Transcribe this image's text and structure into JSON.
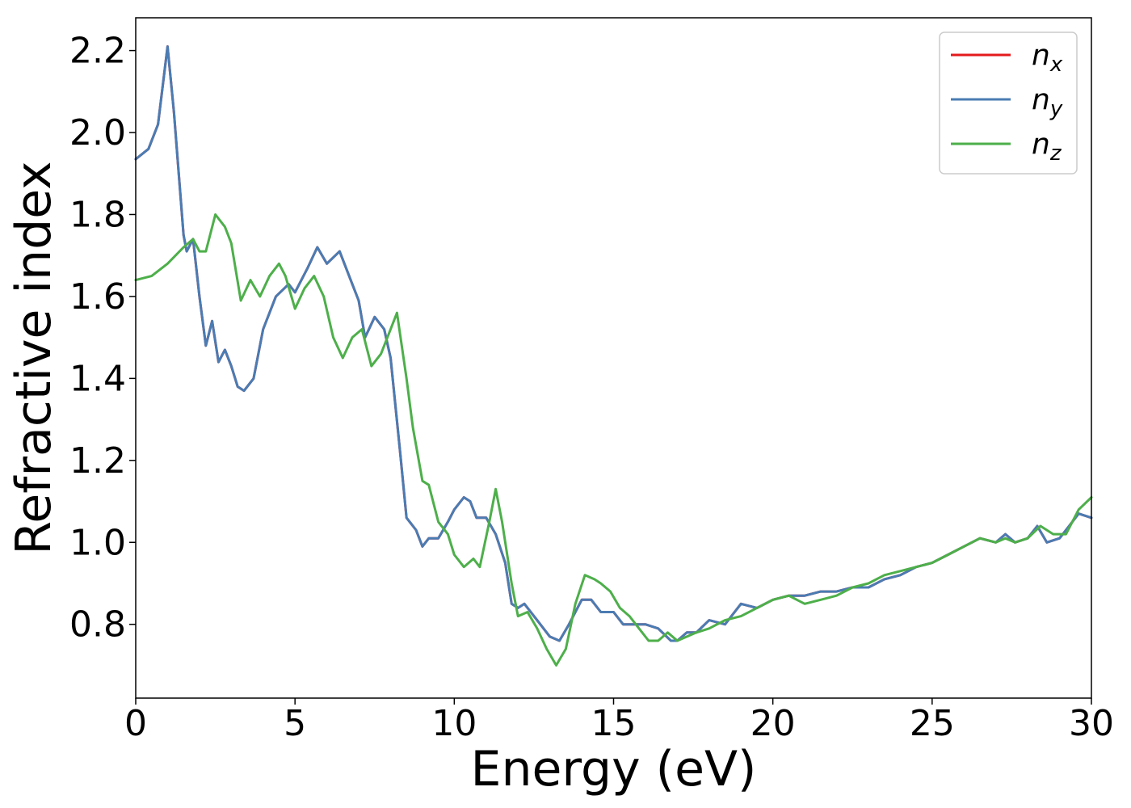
{
  "chart_data": {
    "type": "line",
    "title": "",
    "xlabel": "Energy (eV)",
    "ylabel": "Refractive index",
    "xlim": [
      0,
      30
    ],
    "ylim": [
      0.62,
      2.28
    ],
    "xticks": [
      0,
      5,
      10,
      15,
      20,
      25,
      30
    ],
    "xtick_labels": [
      "0",
      "5",
      "10",
      "15",
      "20",
      "25",
      "30"
    ],
    "yticks": [
      0.8,
      1.0,
      1.2,
      1.4,
      1.6,
      1.8,
      2.0,
      2.2
    ],
    "ytick_labels": [
      "0.8",
      "1.0",
      "1.2",
      "1.4",
      "1.6",
      "1.8",
      "2.0",
      "2.2"
    ],
    "grid": false,
    "legend_placement": "top-right",
    "series": [
      {
        "name": "n_x",
        "label_base": "n",
        "label_sub": "x",
        "color": "#e41a1c",
        "x": [
          0,
          0.4,
          0.7,
          1.0,
          1.2,
          1.5,
          1.6,
          1.8,
          2.0,
          2.2,
          2.4,
          2.6,
          2.8,
          3.0,
          3.2,
          3.4,
          3.7,
          4.0,
          4.4,
          4.8,
          5.0,
          5.4,
          5.7,
          6.0,
          6.4,
          6.8,
          7.0,
          7.2,
          7.5,
          7.8,
          8.0,
          8.3,
          8.5,
          8.8,
          9.0,
          9.2,
          9.5,
          9.8,
          10.0,
          10.3,
          10.5,
          10.7,
          11.0,
          11.3,
          11.6,
          11.8,
          12.0,
          12.2,
          12.6,
          13.0,
          13.3,
          13.6,
          14.0,
          14.3,
          14.6,
          15.0,
          15.3,
          15.6,
          16.0,
          16.4,
          16.8,
          17.0,
          17.3,
          17.6,
          18.0,
          18.5,
          19.0,
          19.5,
          20.0,
          20.5,
          21.0,
          21.5,
          22.0,
          22.5,
          23.0,
          23.5,
          24.0,
          24.5,
          25.0,
          25.5,
          26.0,
          26.5,
          27.0,
          27.3,
          27.6,
          28.0,
          28.3,
          28.6,
          29.0,
          29.3,
          29.6,
          30.0
        ],
        "y": [
          1.935,
          1.96,
          2.02,
          2.21,
          2.05,
          1.75,
          1.71,
          1.74,
          1.6,
          1.48,
          1.54,
          1.44,
          1.47,
          1.43,
          1.38,
          1.37,
          1.4,
          1.52,
          1.6,
          1.63,
          1.61,
          1.67,
          1.72,
          1.68,
          1.71,
          1.63,
          1.59,
          1.5,
          1.55,
          1.52,
          1.45,
          1.22,
          1.06,
          1.03,
          0.99,
          1.01,
          1.01,
          1.05,
          1.08,
          1.11,
          1.1,
          1.06,
          1.06,
          1.02,
          0.95,
          0.85,
          0.84,
          0.85,
          0.81,
          0.77,
          0.76,
          0.8,
          0.86,
          0.86,
          0.83,
          0.83,
          0.8,
          0.8,
          0.8,
          0.79,
          0.76,
          0.76,
          0.78,
          0.78,
          0.81,
          0.8,
          0.85,
          0.84,
          0.86,
          0.87,
          0.87,
          0.88,
          0.88,
          0.89,
          0.89,
          0.91,
          0.92,
          0.94,
          0.95,
          0.97,
          0.99,
          1.01,
          1.0,
          1.02,
          1.0,
          1.01,
          1.04,
          1.0,
          1.01,
          1.04,
          1.07,
          1.06
        ]
      },
      {
        "name": "n_y",
        "label_base": "n",
        "label_sub": "y",
        "color": "#4a7cb3",
        "x": [
          0,
          0.4,
          0.7,
          1.0,
          1.2,
          1.5,
          1.6,
          1.8,
          2.0,
          2.2,
          2.4,
          2.6,
          2.8,
          3.0,
          3.2,
          3.4,
          3.7,
          4.0,
          4.4,
          4.8,
          5.0,
          5.4,
          5.7,
          6.0,
          6.4,
          6.8,
          7.0,
          7.2,
          7.5,
          7.8,
          8.0,
          8.3,
          8.5,
          8.8,
          9.0,
          9.2,
          9.5,
          9.8,
          10.0,
          10.3,
          10.5,
          10.7,
          11.0,
          11.3,
          11.6,
          11.8,
          12.0,
          12.2,
          12.6,
          13.0,
          13.3,
          13.6,
          14.0,
          14.3,
          14.6,
          15.0,
          15.3,
          15.6,
          16.0,
          16.4,
          16.8,
          17.0,
          17.3,
          17.6,
          18.0,
          18.5,
          19.0,
          19.5,
          20.0,
          20.5,
          21.0,
          21.5,
          22.0,
          22.5,
          23.0,
          23.5,
          24.0,
          24.5,
          25.0,
          25.5,
          26.0,
          26.5,
          27.0,
          27.3,
          27.6,
          28.0,
          28.3,
          28.6,
          29.0,
          29.3,
          29.6,
          30.0
        ],
        "y": [
          1.935,
          1.96,
          2.02,
          2.21,
          2.05,
          1.75,
          1.71,
          1.74,
          1.6,
          1.48,
          1.54,
          1.44,
          1.47,
          1.43,
          1.38,
          1.37,
          1.4,
          1.52,
          1.6,
          1.63,
          1.61,
          1.67,
          1.72,
          1.68,
          1.71,
          1.63,
          1.59,
          1.5,
          1.55,
          1.52,
          1.45,
          1.22,
          1.06,
          1.03,
          0.99,
          1.01,
          1.01,
          1.05,
          1.08,
          1.11,
          1.1,
          1.06,
          1.06,
          1.02,
          0.95,
          0.85,
          0.84,
          0.85,
          0.81,
          0.77,
          0.76,
          0.8,
          0.86,
          0.86,
          0.83,
          0.83,
          0.8,
          0.8,
          0.8,
          0.79,
          0.76,
          0.76,
          0.78,
          0.78,
          0.81,
          0.8,
          0.85,
          0.84,
          0.86,
          0.87,
          0.87,
          0.88,
          0.88,
          0.89,
          0.89,
          0.91,
          0.92,
          0.94,
          0.95,
          0.97,
          0.99,
          1.01,
          1.0,
          1.02,
          1.0,
          1.01,
          1.04,
          1.0,
          1.01,
          1.04,
          1.07,
          1.06
        ]
      },
      {
        "name": "n_z",
        "label_base": "n",
        "label_sub": "z",
        "color": "#4daf4a",
        "x": [
          0,
          0.5,
          1.0,
          1.5,
          1.8,
          2.0,
          2.2,
          2.5,
          2.8,
          3.0,
          3.3,
          3.6,
          3.9,
          4.2,
          4.5,
          4.7,
          5.0,
          5.3,
          5.6,
          5.9,
          6.2,
          6.5,
          6.8,
          7.1,
          7.4,
          7.7,
          8.0,
          8.2,
          8.5,
          8.7,
          9.0,
          9.2,
          9.5,
          9.8,
          10.0,
          10.3,
          10.6,
          10.8,
          11.1,
          11.3,
          11.5,
          11.8,
          12.0,
          12.3,
          12.6,
          12.9,
          13.2,
          13.5,
          13.8,
          14.1,
          14.4,
          14.6,
          14.9,
          15.2,
          15.5,
          15.8,
          16.1,
          16.4,
          16.7,
          17.0,
          17.3,
          17.6,
          18.0,
          18.5,
          19.0,
          19.5,
          20.0,
          20.5,
          21.0,
          21.5,
          22.0,
          22.5,
          23.0,
          23.5,
          24.0,
          24.5,
          25.0,
          25.5,
          26.0,
          26.5,
          27.0,
          27.3,
          27.6,
          28.0,
          28.4,
          28.8,
          29.2,
          29.6,
          30.0
        ],
        "y": [
          1.64,
          1.65,
          1.68,
          1.72,
          1.74,
          1.71,
          1.71,
          1.8,
          1.77,
          1.73,
          1.59,
          1.64,
          1.6,
          1.65,
          1.68,
          1.65,
          1.57,
          1.62,
          1.65,
          1.6,
          1.5,
          1.45,
          1.5,
          1.52,
          1.43,
          1.46,
          1.52,
          1.56,
          1.4,
          1.28,
          1.15,
          1.14,
          1.05,
          1.02,
          0.97,
          0.94,
          0.96,
          0.94,
          1.05,
          1.13,
          1.05,
          0.9,
          0.82,
          0.83,
          0.79,
          0.74,
          0.7,
          0.74,
          0.85,
          0.92,
          0.91,
          0.9,
          0.88,
          0.84,
          0.82,
          0.79,
          0.76,
          0.76,
          0.78,
          0.76,
          0.77,
          0.78,
          0.79,
          0.81,
          0.82,
          0.84,
          0.86,
          0.87,
          0.85,
          0.86,
          0.87,
          0.89,
          0.9,
          0.92,
          0.93,
          0.94,
          0.95,
          0.97,
          0.99,
          1.01,
          1.0,
          1.01,
          1.0,
          1.01,
          1.04,
          1.02,
          1.02,
          1.08,
          1.11
        ]
      }
    ]
  }
}
